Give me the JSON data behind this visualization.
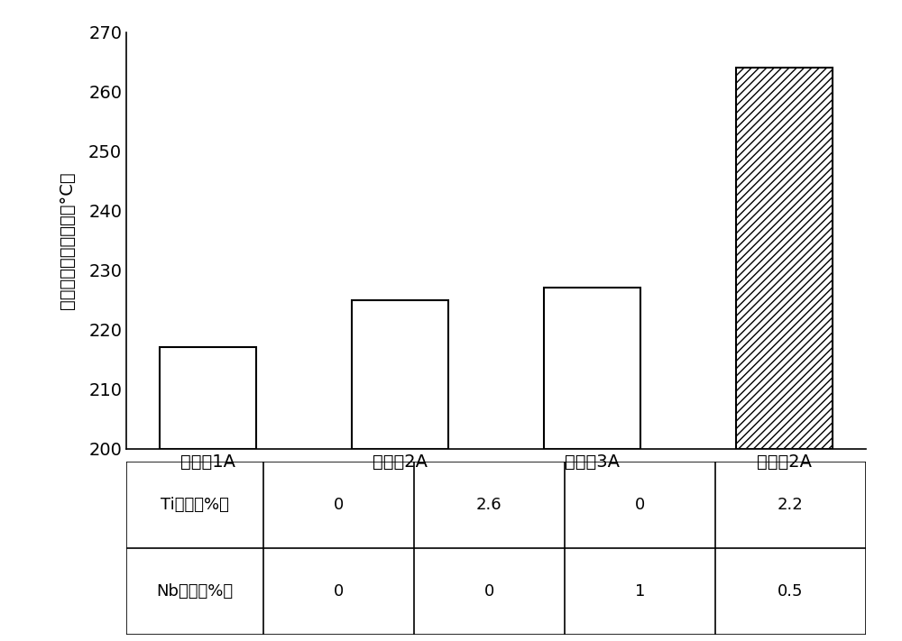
{
  "categories": [
    "比较例1A",
    "比较例2A",
    "比较例3A",
    "实施例2A"
  ],
  "values": [
    217,
    225,
    227,
    264
  ],
  "ylim": [
    200,
    270
  ],
  "yticks": [
    200,
    210,
    220,
    230,
    240,
    250,
    260,
    270
  ],
  "ylabel": "最大氧产生峰値温度（°C）",
  "bar_colors": [
    "white",
    "white",
    "white",
    "white"
  ],
  "hatch_patterns": [
    "",
    "",
    "",
    "////"
  ],
  "table_row1_label": "Ti（原子%）",
  "table_row2_label": "Nb（原子%）",
  "table_row1_values": [
    "0",
    "2.6",
    "0",
    "2.2"
  ],
  "table_row2_values": [
    "0",
    "0",
    "1",
    "0.5"
  ],
  "bar_edgecolor": "black",
  "background_color": "white",
  "bar_width": 0.5
}
